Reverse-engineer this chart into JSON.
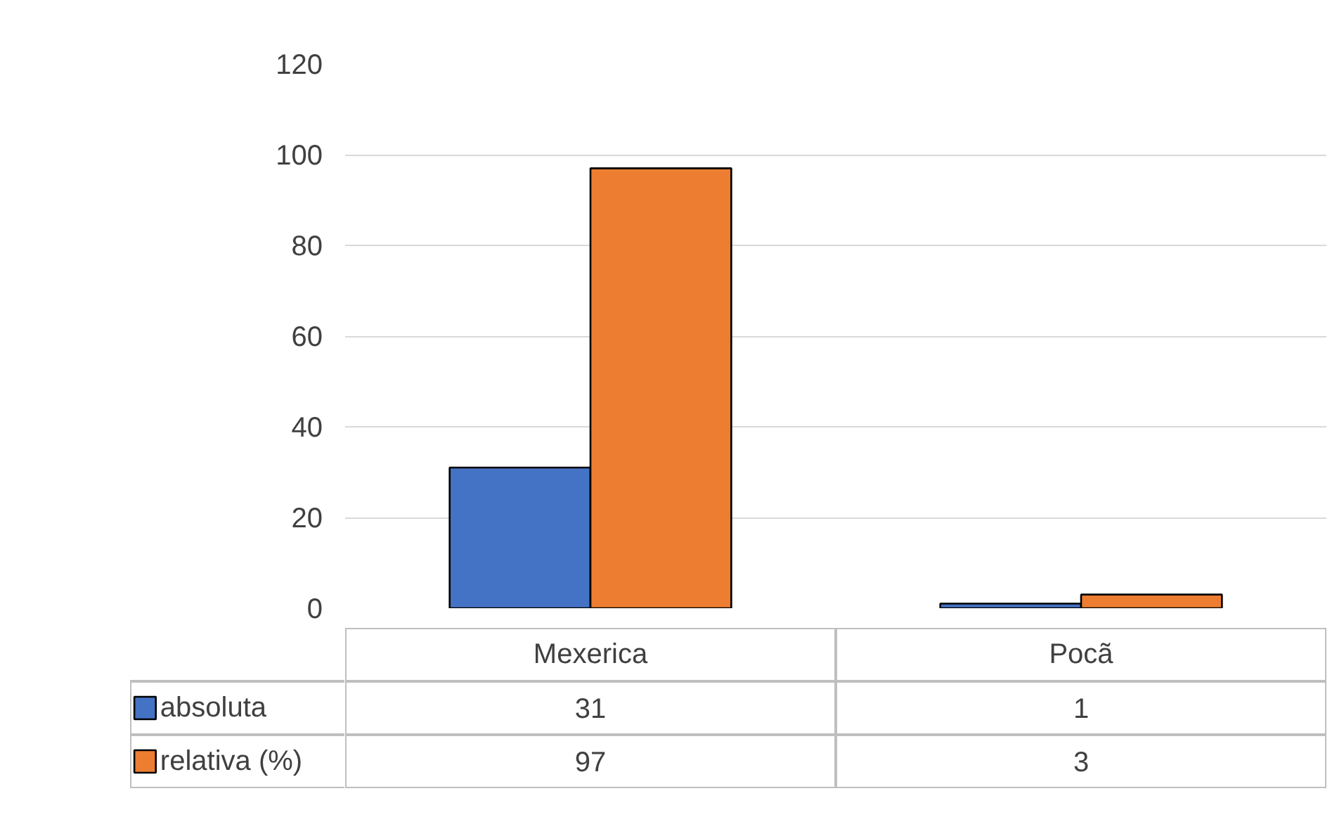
{
  "chart_data": {
    "type": "bar",
    "categories": [
      "Mexerica",
      "Pocã"
    ],
    "series": [
      {
        "name": "absoluta",
        "color": "#4472c4",
        "values": [
          31,
          1
        ]
      },
      {
        "name": "relativa (%)",
        "color": "#ed7d31",
        "values": [
          97,
          3
        ]
      }
    ],
    "ylim": [
      0,
      120
    ],
    "yticks": [
      0,
      20,
      40,
      60,
      80,
      100,
      120
    ],
    "grid": "y",
    "legend": "bottom",
    "data_labels": true
  }
}
